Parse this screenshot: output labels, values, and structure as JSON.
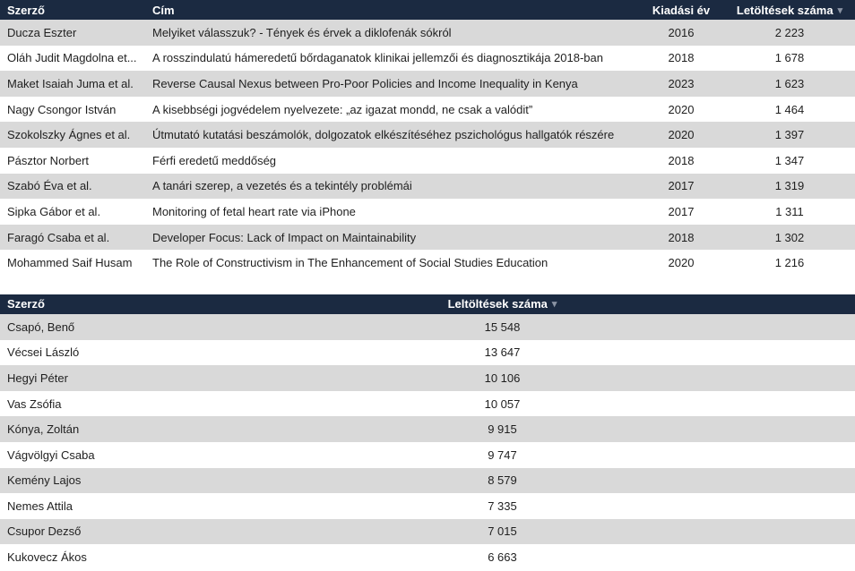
{
  "colors": {
    "header_bg": "#1b2a41",
    "header_text": "#ffffff",
    "row_alt_bg": "#d9d9d9",
    "row_bg": "#ffffff",
    "cell_text": "#1f1f1f",
    "sort_icon_color": "#8a93a3"
  },
  "documents_table": {
    "headers": {
      "author": "Szerző",
      "title": "Cím",
      "year": "Kiadási év",
      "downloads": "Letöltések száma"
    },
    "sort_icon": "▾",
    "rows": [
      {
        "author": "Ducza Eszter",
        "title": "Melyiket válasszuk? - Tények és érvek a diklofenák sókról",
        "year": "2016",
        "downloads": "2 223"
      },
      {
        "author": "Oláh Judit Magdolna et...",
        "title": "A rosszindulatú hámeredetű bőrdaganatok klinikai jellemzői és diagnosztikája 2018-ban",
        "year": "2018",
        "downloads": "1 678"
      },
      {
        "author": "Maket Isaiah Juma et al.",
        "title": "Reverse Causal Nexus between Pro-Poor Policies and Income Inequality in Kenya",
        "year": "2023",
        "downloads": "1 623"
      },
      {
        "author": "Nagy Csongor István",
        "title": "A kisebbségi jogvédelem nyelvezete: „az igazat mondd, ne csak a valódit”",
        "year": "2020",
        "downloads": "1 464"
      },
      {
        "author": "Szokolszky Ágnes et al.",
        "title": "Útmutató kutatási beszámolók, dolgozatok elkészítéséhez pszichológus hallgatók részére",
        "year": "2020",
        "downloads": "1 397"
      },
      {
        "author": "Pásztor Norbert",
        "title": "Férfi eredetű meddőség",
        "year": "2018",
        "downloads": "1 347"
      },
      {
        "author": "Szabó Éva et al.",
        "title": "A tanári szerep, a vezetés és a tekintély problémái",
        "year": "2017",
        "downloads": "1 319"
      },
      {
        "author": "Sipka Gábor et al.",
        "title": "Monitoring of fetal heart rate via iPhone",
        "year": "2017",
        "downloads": "1 311"
      },
      {
        "author": "Faragó Csaba et al.",
        "title": "Developer Focus: Lack of Impact on Maintainability",
        "year": "2018",
        "downloads": "1 302"
      },
      {
        "author": "Mohammed Saif Husam",
        "title": "The Role of Constructivism in The Enhancement of Social Studies Education",
        "year": "2020",
        "downloads": "1 216"
      }
    ]
  },
  "authors_table": {
    "headers": {
      "author": "Szerző",
      "downloads": "Leltöltések száma"
    },
    "sort_icon": "▾",
    "rows": [
      {
        "author": "Csapó, Benő",
        "downloads": "15 548"
      },
      {
        "author": "Vécsei László",
        "downloads": "13 647"
      },
      {
        "author": "Hegyi Péter",
        "downloads": "10 106"
      },
      {
        "author": "Vas Zsófia",
        "downloads": "10 057"
      },
      {
        "author": "Kónya, Zoltán",
        "downloads": "9 915"
      },
      {
        "author": "Vágvölgyi Csaba",
        "downloads": "9 747"
      },
      {
        "author": "Kemény Lajos",
        "downloads": "8 579"
      },
      {
        "author": "Nemes Attila",
        "downloads": "7 335"
      },
      {
        "author": "Csupor Dezső",
        "downloads": "7 015"
      },
      {
        "author": "Kukovecz Ákos",
        "downloads": "6 663"
      }
    ]
  }
}
